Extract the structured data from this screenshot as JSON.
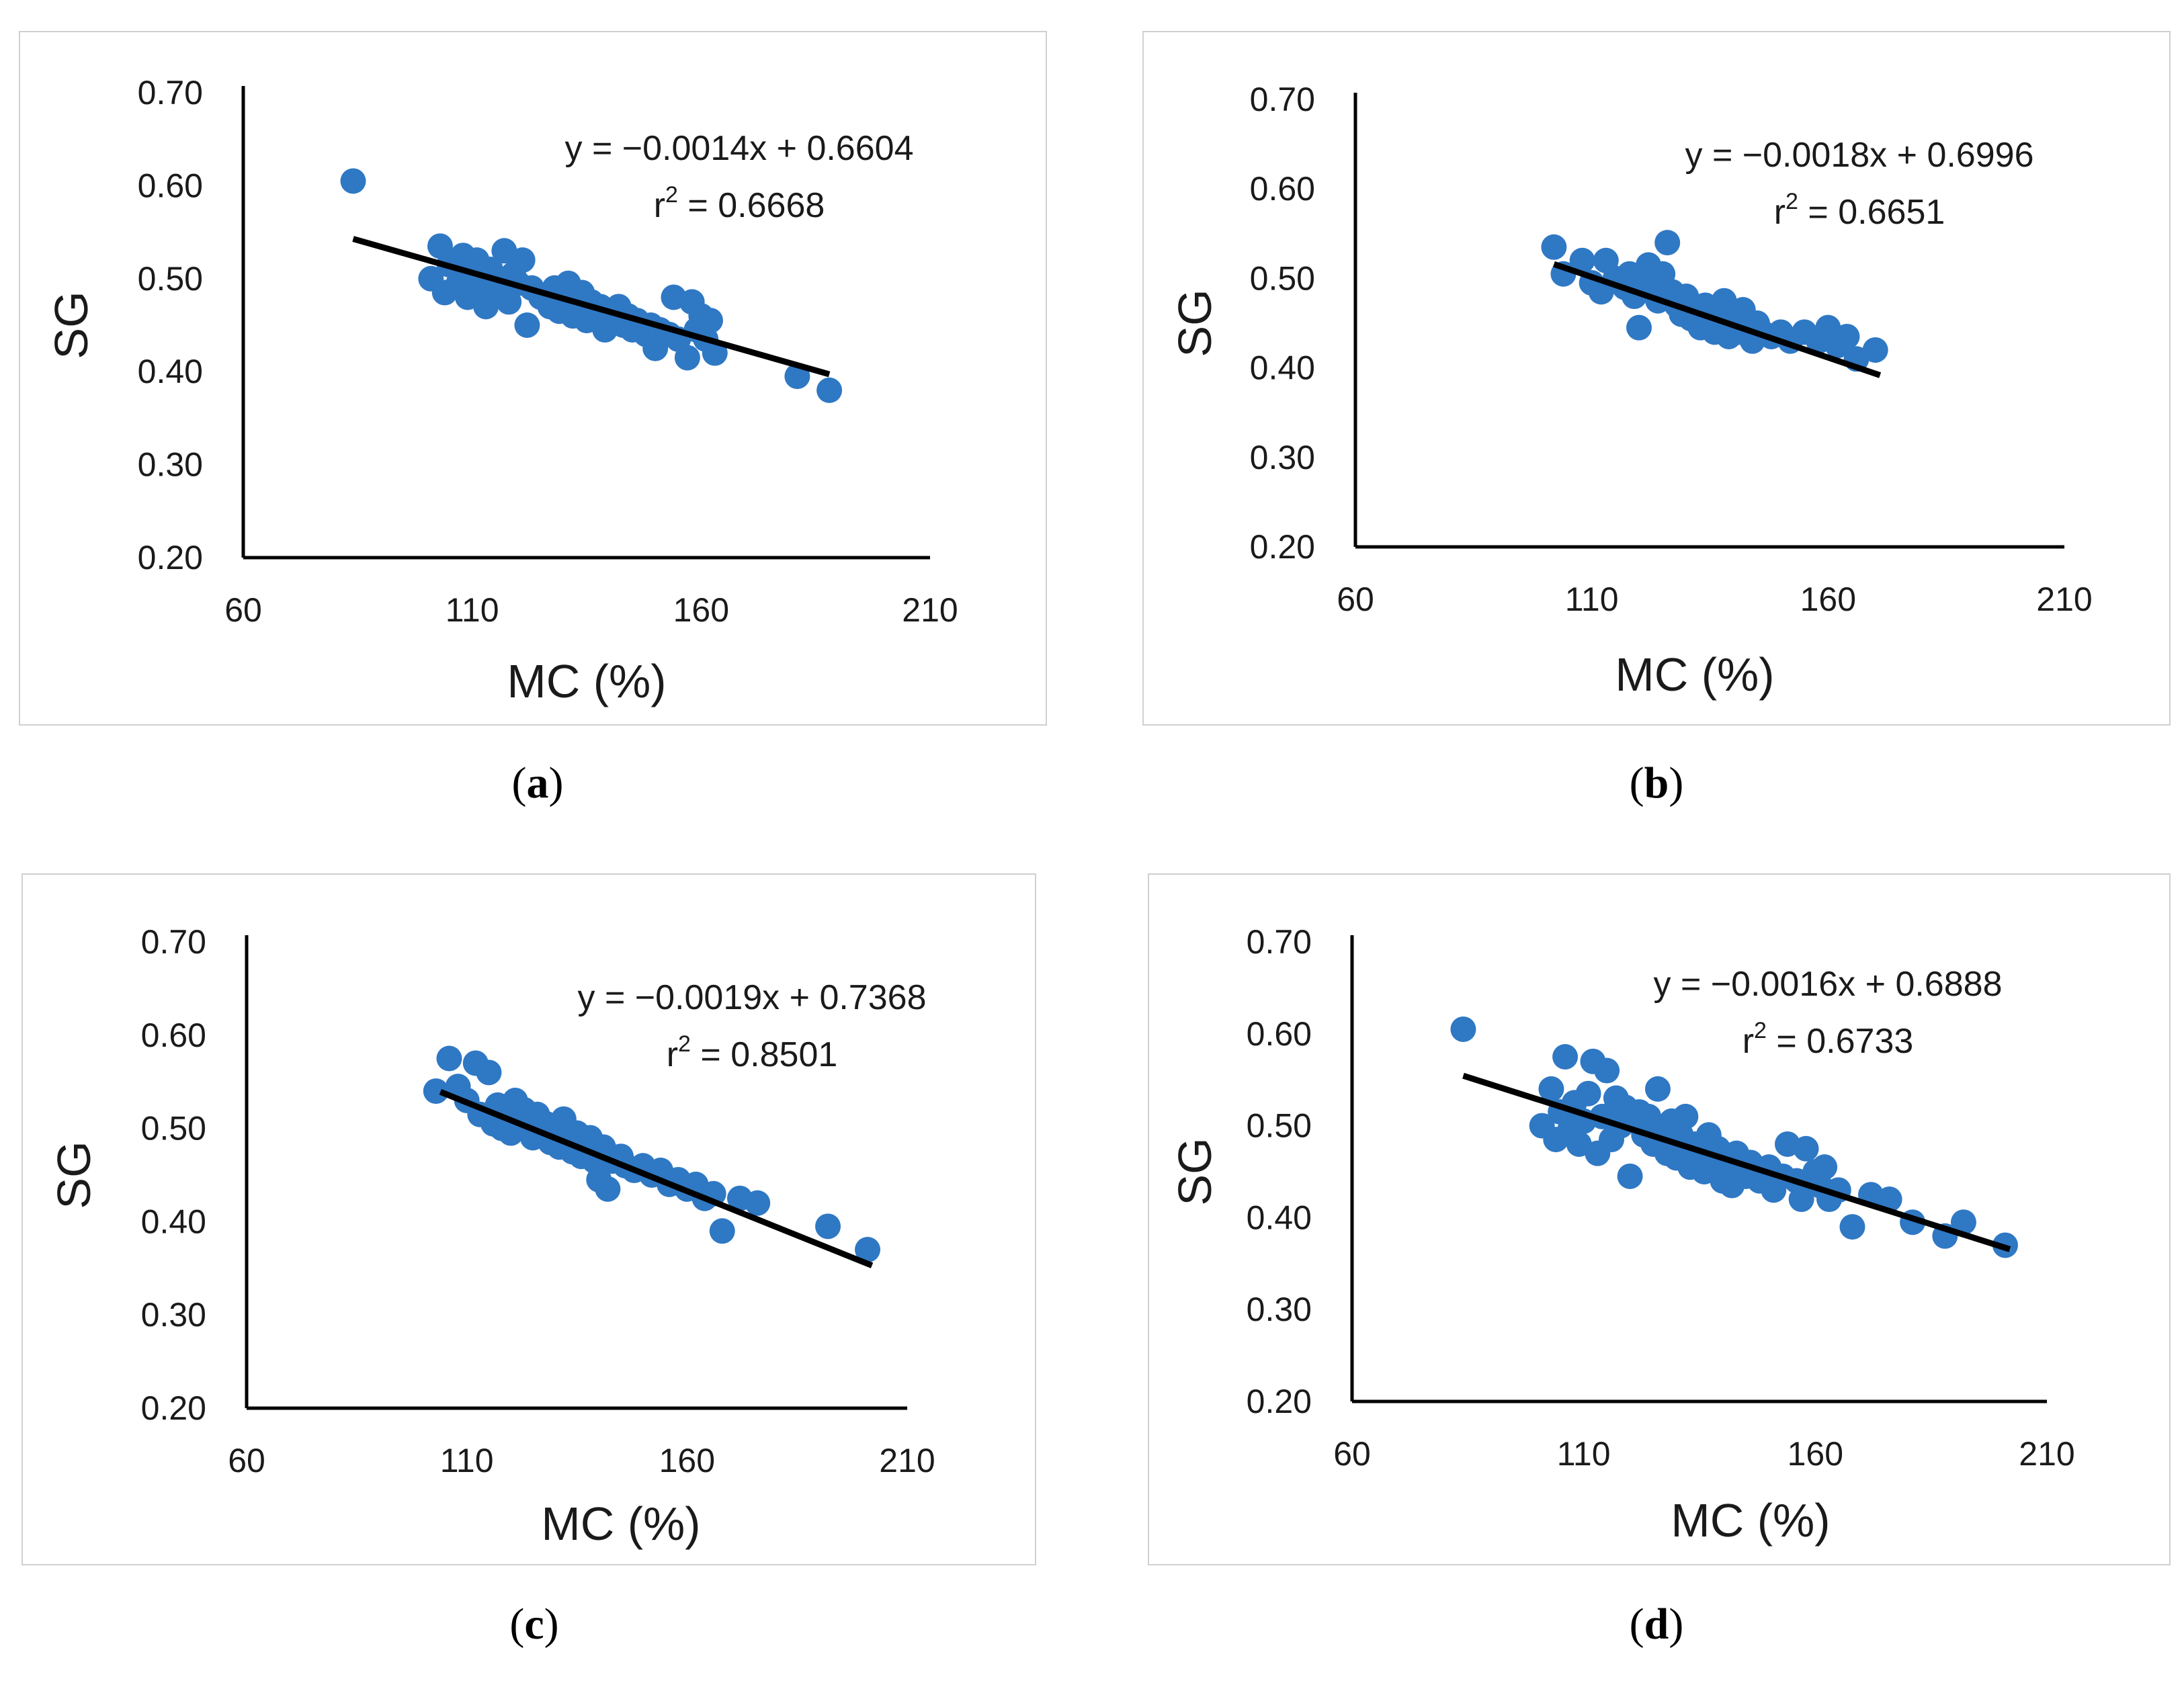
{
  "panels": [
    {
      "caption_letter": "a",
      "chart_data": {
        "type": "scatter",
        "xlabel": "MC (%)",
        "ylabel": "SG",
        "xlim": [
          60,
          210
        ],
        "ylim": [
          0.2,
          0.7
        ],
        "xticks": [
          "60",
          "110",
          "160",
          "210"
        ],
        "yticks": [
          "0.20",
          "0.30",
          "0.40",
          "0.50",
          "0.60",
          "0.70"
        ],
        "equation": "y = −0.0014x + 0.6604",
        "r2_prefix": "r",
        "r2_exp": "2",
        "r2_value": " = 0.6668",
        "trend": {
          "slope": -0.0014,
          "intercept": 0.6604,
          "x_range": [
            84,
            188
          ]
        },
        "marker_color": "#2f78c4",
        "line_color": "#000000",
        "points": [
          [
            84,
            0.605
          ],
          [
            101,
            0.5
          ],
          [
            103,
            0.535
          ],
          [
            104,
            0.485
          ],
          [
            105,
            0.515
          ],
          [
            107,
            0.495
          ],
          [
            108,
            0.525
          ],
          [
            109,
            0.48
          ],
          [
            110,
            0.505
          ],
          [
            111,
            0.52
          ],
          [
            112,
            0.49
          ],
          [
            113,
            0.47
          ],
          [
            114,
            0.51
          ],
          [
            115,
            0.5
          ],
          [
            116,
            0.485
          ],
          [
            117,
            0.53
          ],
          [
            118,
            0.475
          ],
          [
            119,
            0.505
          ],
          [
            120,
            0.495
          ],
          [
            121,
            0.52
          ],
          [
            122,
            0.45
          ],
          [
            123,
            0.49
          ],
          [
            125,
            0.48
          ],
          [
            127,
            0.47
          ],
          [
            128,
            0.49
          ],
          [
            129,
            0.465
          ],
          [
            130,
            0.48
          ],
          [
            131,
            0.495
          ],
          [
            132,
            0.46
          ],
          [
            133,
            0.47
          ],
          [
            134,
            0.485
          ],
          [
            135,
            0.455
          ],
          [
            136,
            0.475
          ],
          [
            137,
            0.46
          ],
          [
            138,
            0.47
          ],
          [
            139,
            0.445
          ],
          [
            140,
            0.465
          ],
          [
            141,
            0.455
          ],
          [
            142,
            0.47
          ],
          [
            143,
            0.45
          ],
          [
            144,
            0.46
          ],
          [
            145,
            0.445
          ],
          [
            146,
            0.455
          ],
          [
            148,
            0.44
          ],
          [
            149,
            0.45
          ],
          [
            150,
            0.425
          ],
          [
            151,
            0.445
          ],
          [
            153,
            0.44
          ],
          [
            154,
            0.48
          ],
          [
            155,
            0.435
          ],
          [
            157,
            0.415
          ],
          [
            158,
            0.475
          ],
          [
            159,
            0.445
          ],
          [
            160,
            0.46
          ],
          [
            161,
            0.435
          ],
          [
            162,
            0.455
          ],
          [
            163,
            0.42
          ],
          [
            181,
            0.395
          ],
          [
            188,
            0.38
          ]
        ]
      }
    },
    {
      "caption_letter": "b",
      "chart_data": {
        "type": "scatter",
        "xlabel": "MC (%)",
        "ylabel": "SG",
        "xlim": [
          60,
          210
        ],
        "ylim": [
          0.2,
          0.7
        ],
        "xticks": [
          "60",
          "110",
          "160",
          "210"
        ],
        "yticks": [
          "0.20",
          "0.30",
          "0.40",
          "0.50",
          "0.60",
          "0.70"
        ],
        "equation": "y = −0.0018x + 0.6996",
        "r2_prefix": "r",
        "r2_exp": "2",
        "r2_value": " = 0.6651",
        "trend": {
          "slope": -0.0018,
          "intercept": 0.6996,
          "x_range": [
            102,
            171
          ]
        },
        "marker_color": "#2f78c4",
        "line_color": "#000000",
        "points": [
          [
            102,
            0.535
          ],
          [
            104,
            0.505
          ],
          [
            108,
            0.52
          ],
          [
            110,
            0.495
          ],
          [
            112,
            0.485
          ],
          [
            113,
            0.52
          ],
          [
            115,
            0.5
          ],
          [
            117,
            0.49
          ],
          [
            118,
            0.505
          ],
          [
            119,
            0.48
          ],
          [
            120,
            0.445
          ],
          [
            121,
            0.5
          ],
          [
            122,
            0.515
          ],
          [
            123,
            0.49
          ],
          [
            124,
            0.475
          ],
          [
            125,
            0.505
          ],
          [
            126,
            0.54
          ],
          [
            127,
            0.485
          ],
          [
            128,
            0.47
          ],
          [
            129,
            0.46
          ],
          [
            130,
            0.48
          ],
          [
            131,
            0.455
          ],
          [
            132,
            0.465
          ],
          [
            133,
            0.445
          ],
          [
            134,
            0.47
          ],
          [
            135,
            0.45
          ],
          [
            136,
            0.44
          ],
          [
            137,
            0.46
          ],
          [
            138,
            0.475
          ],
          [
            139,
            0.435
          ],
          [
            140,
            0.455
          ],
          [
            141,
            0.44
          ],
          [
            142,
            0.465
          ],
          [
            143,
            0.445
          ],
          [
            144,
            0.43
          ],
          [
            145,
            0.45
          ],
          [
            146,
            0.44
          ],
          [
            148,
            0.435
          ],
          [
            150,
            0.44
          ],
          [
            152,
            0.43
          ],
          [
            155,
            0.44
          ],
          [
            158,
            0.43
          ],
          [
            160,
            0.445
          ],
          [
            162,
            0.425
          ],
          [
            164,
            0.435
          ],
          [
            166,
            0.41
          ],
          [
            170,
            0.42
          ]
        ]
      }
    },
    {
      "caption_letter": "c",
      "chart_data": {
        "type": "scatter",
        "xlabel": "MC (%)",
        "ylabel": "SG",
        "xlim": [
          60,
          210
        ],
        "ylim": [
          0.2,
          0.7
        ],
        "xticks": [
          "60",
          "110",
          "160",
          "210"
        ],
        "yticks": [
          "0.20",
          "0.30",
          "0.40",
          "0.50",
          "0.60",
          "0.70"
        ],
        "equation": "y = −0.0019x + 0.7368",
        "r2_prefix": "r",
        "r2_exp": "2",
        "r2_value": " = 0.8501",
        "trend": {
          "slope": -0.0019,
          "intercept": 0.7368,
          "x_range": [
            104,
            202
          ]
        },
        "marker_color": "#2f78c4",
        "line_color": "#000000",
        "points": [
          [
            103,
            0.54
          ],
          [
            106,
            0.575
          ],
          [
            108,
            0.545
          ],
          [
            110,
            0.53
          ],
          [
            112,
            0.57
          ],
          [
            113,
            0.515
          ],
          [
            115,
            0.56
          ],
          [
            116,
            0.505
          ],
          [
            117,
            0.525
          ],
          [
            118,
            0.5
          ],
          [
            119,
            0.515
          ],
          [
            120,
            0.495
          ],
          [
            121,
            0.53
          ],
          [
            122,
            0.51
          ],
          [
            123,
            0.52
          ],
          [
            124,
            0.5
          ],
          [
            125,
            0.49
          ],
          [
            126,
            0.515
          ],
          [
            127,
            0.495
          ],
          [
            128,
            0.505
          ],
          [
            129,
            0.485
          ],
          [
            130,
            0.5
          ],
          [
            131,
            0.48
          ],
          [
            132,
            0.51
          ],
          [
            133,
            0.49
          ],
          [
            134,
            0.475
          ],
          [
            135,
            0.495
          ],
          [
            136,
            0.47
          ],
          [
            137,
            0.485
          ],
          [
            138,
            0.49
          ],
          [
            139,
            0.465
          ],
          [
            140,
            0.445
          ],
          [
            141,
            0.48
          ],
          [
            142,
            0.435
          ],
          [
            143,
            0.465
          ],
          [
            145,
            0.47
          ],
          [
            146,
            0.46
          ],
          [
            148,
            0.455
          ],
          [
            150,
            0.46
          ],
          [
            152,
            0.45
          ],
          [
            154,
            0.455
          ],
          [
            156,
            0.44
          ],
          [
            158,
            0.445
          ],
          [
            160,
            0.435
          ],
          [
            162,
            0.44
          ],
          [
            164,
            0.425
          ],
          [
            166,
            0.43
          ],
          [
            168,
            0.39
          ],
          [
            172,
            0.425
          ],
          [
            176,
            0.42
          ],
          [
            192,
            0.395
          ],
          [
            201,
            0.37
          ]
        ]
      }
    },
    {
      "caption_letter": "d",
      "chart_data": {
        "type": "scatter",
        "xlabel": "MC (%)",
        "ylabel": "SG",
        "xlim": [
          60,
          210
        ],
        "ylim": [
          0.2,
          0.7
        ],
        "xticks": [
          "60",
          "110",
          "160",
          "210"
        ],
        "yticks": [
          "0.20",
          "0.30",
          "0.40",
          "0.50",
          "0.60",
          "0.70"
        ],
        "equation": "y = −0.0016x + 0.6888",
        "r2_prefix": "r",
        "r2_exp": "2",
        "r2_value": " = 0.6733",
        "trend": {
          "slope": -0.0016,
          "intercept": 0.6888,
          "x_range": [
            84,
            202
          ]
        },
        "marker_color": "#2f78c4",
        "line_color": "#000000",
        "points": [
          [
            84,
            0.605
          ],
          [
            101,
            0.5
          ],
          [
            103,
            0.54
          ],
          [
            104,
            0.485
          ],
          [
            105,
            0.515
          ],
          [
            106,
            0.575
          ],
          [
            107,
            0.495
          ],
          [
            108,
            0.525
          ],
          [
            109,
            0.48
          ],
          [
            110,
            0.505
          ],
          [
            111,
            0.535
          ],
          [
            112,
            0.57
          ],
          [
            113,
            0.47
          ],
          [
            114,
            0.51
          ],
          [
            115,
            0.56
          ],
          [
            116,
            0.485
          ],
          [
            117,
            0.53
          ],
          [
            118,
            0.5
          ],
          [
            119,
            0.52
          ],
          [
            120,
            0.445
          ],
          [
            121,
            0.505
          ],
          [
            122,
            0.515
          ],
          [
            123,
            0.49
          ],
          [
            124,
            0.51
          ],
          [
            125,
            0.48
          ],
          [
            126,
            0.54
          ],
          [
            127,
            0.495
          ],
          [
            128,
            0.47
          ],
          [
            129,
            0.505
          ],
          [
            130,
            0.465
          ],
          [
            131,
            0.49
          ],
          [
            132,
            0.51
          ],
          [
            133,
            0.455
          ],
          [
            134,
            0.48
          ],
          [
            135,
            0.47
          ],
          [
            136,
            0.45
          ],
          [
            137,
            0.49
          ],
          [
            138,
            0.46
          ],
          [
            139,
            0.475
          ],
          [
            140,
            0.44
          ],
          [
            141,
            0.465
          ],
          [
            142,
            0.435
          ],
          [
            143,
            0.47
          ],
          [
            144,
            0.455
          ],
          [
            145,
            0.445
          ],
          [
            146,
            0.46
          ],
          [
            148,
            0.44
          ],
          [
            150,
            0.455
          ],
          [
            151,
            0.43
          ],
          [
            153,
            0.445
          ],
          [
            154,
            0.48
          ],
          [
            156,
            0.44
          ],
          [
            157,
            0.42
          ],
          [
            158,
            0.475
          ],
          [
            160,
            0.45
          ],
          [
            161,
            0.435
          ],
          [
            162,
            0.455
          ],
          [
            163,
            0.42
          ],
          [
            165,
            0.43
          ],
          [
            168,
            0.39
          ],
          [
            172,
            0.425
          ],
          [
            176,
            0.42
          ],
          [
            181,
            0.395
          ],
          [
            188,
            0.38
          ],
          [
            192,
            0.395
          ],
          [
            201,
            0.37
          ]
        ]
      }
    }
  ]
}
